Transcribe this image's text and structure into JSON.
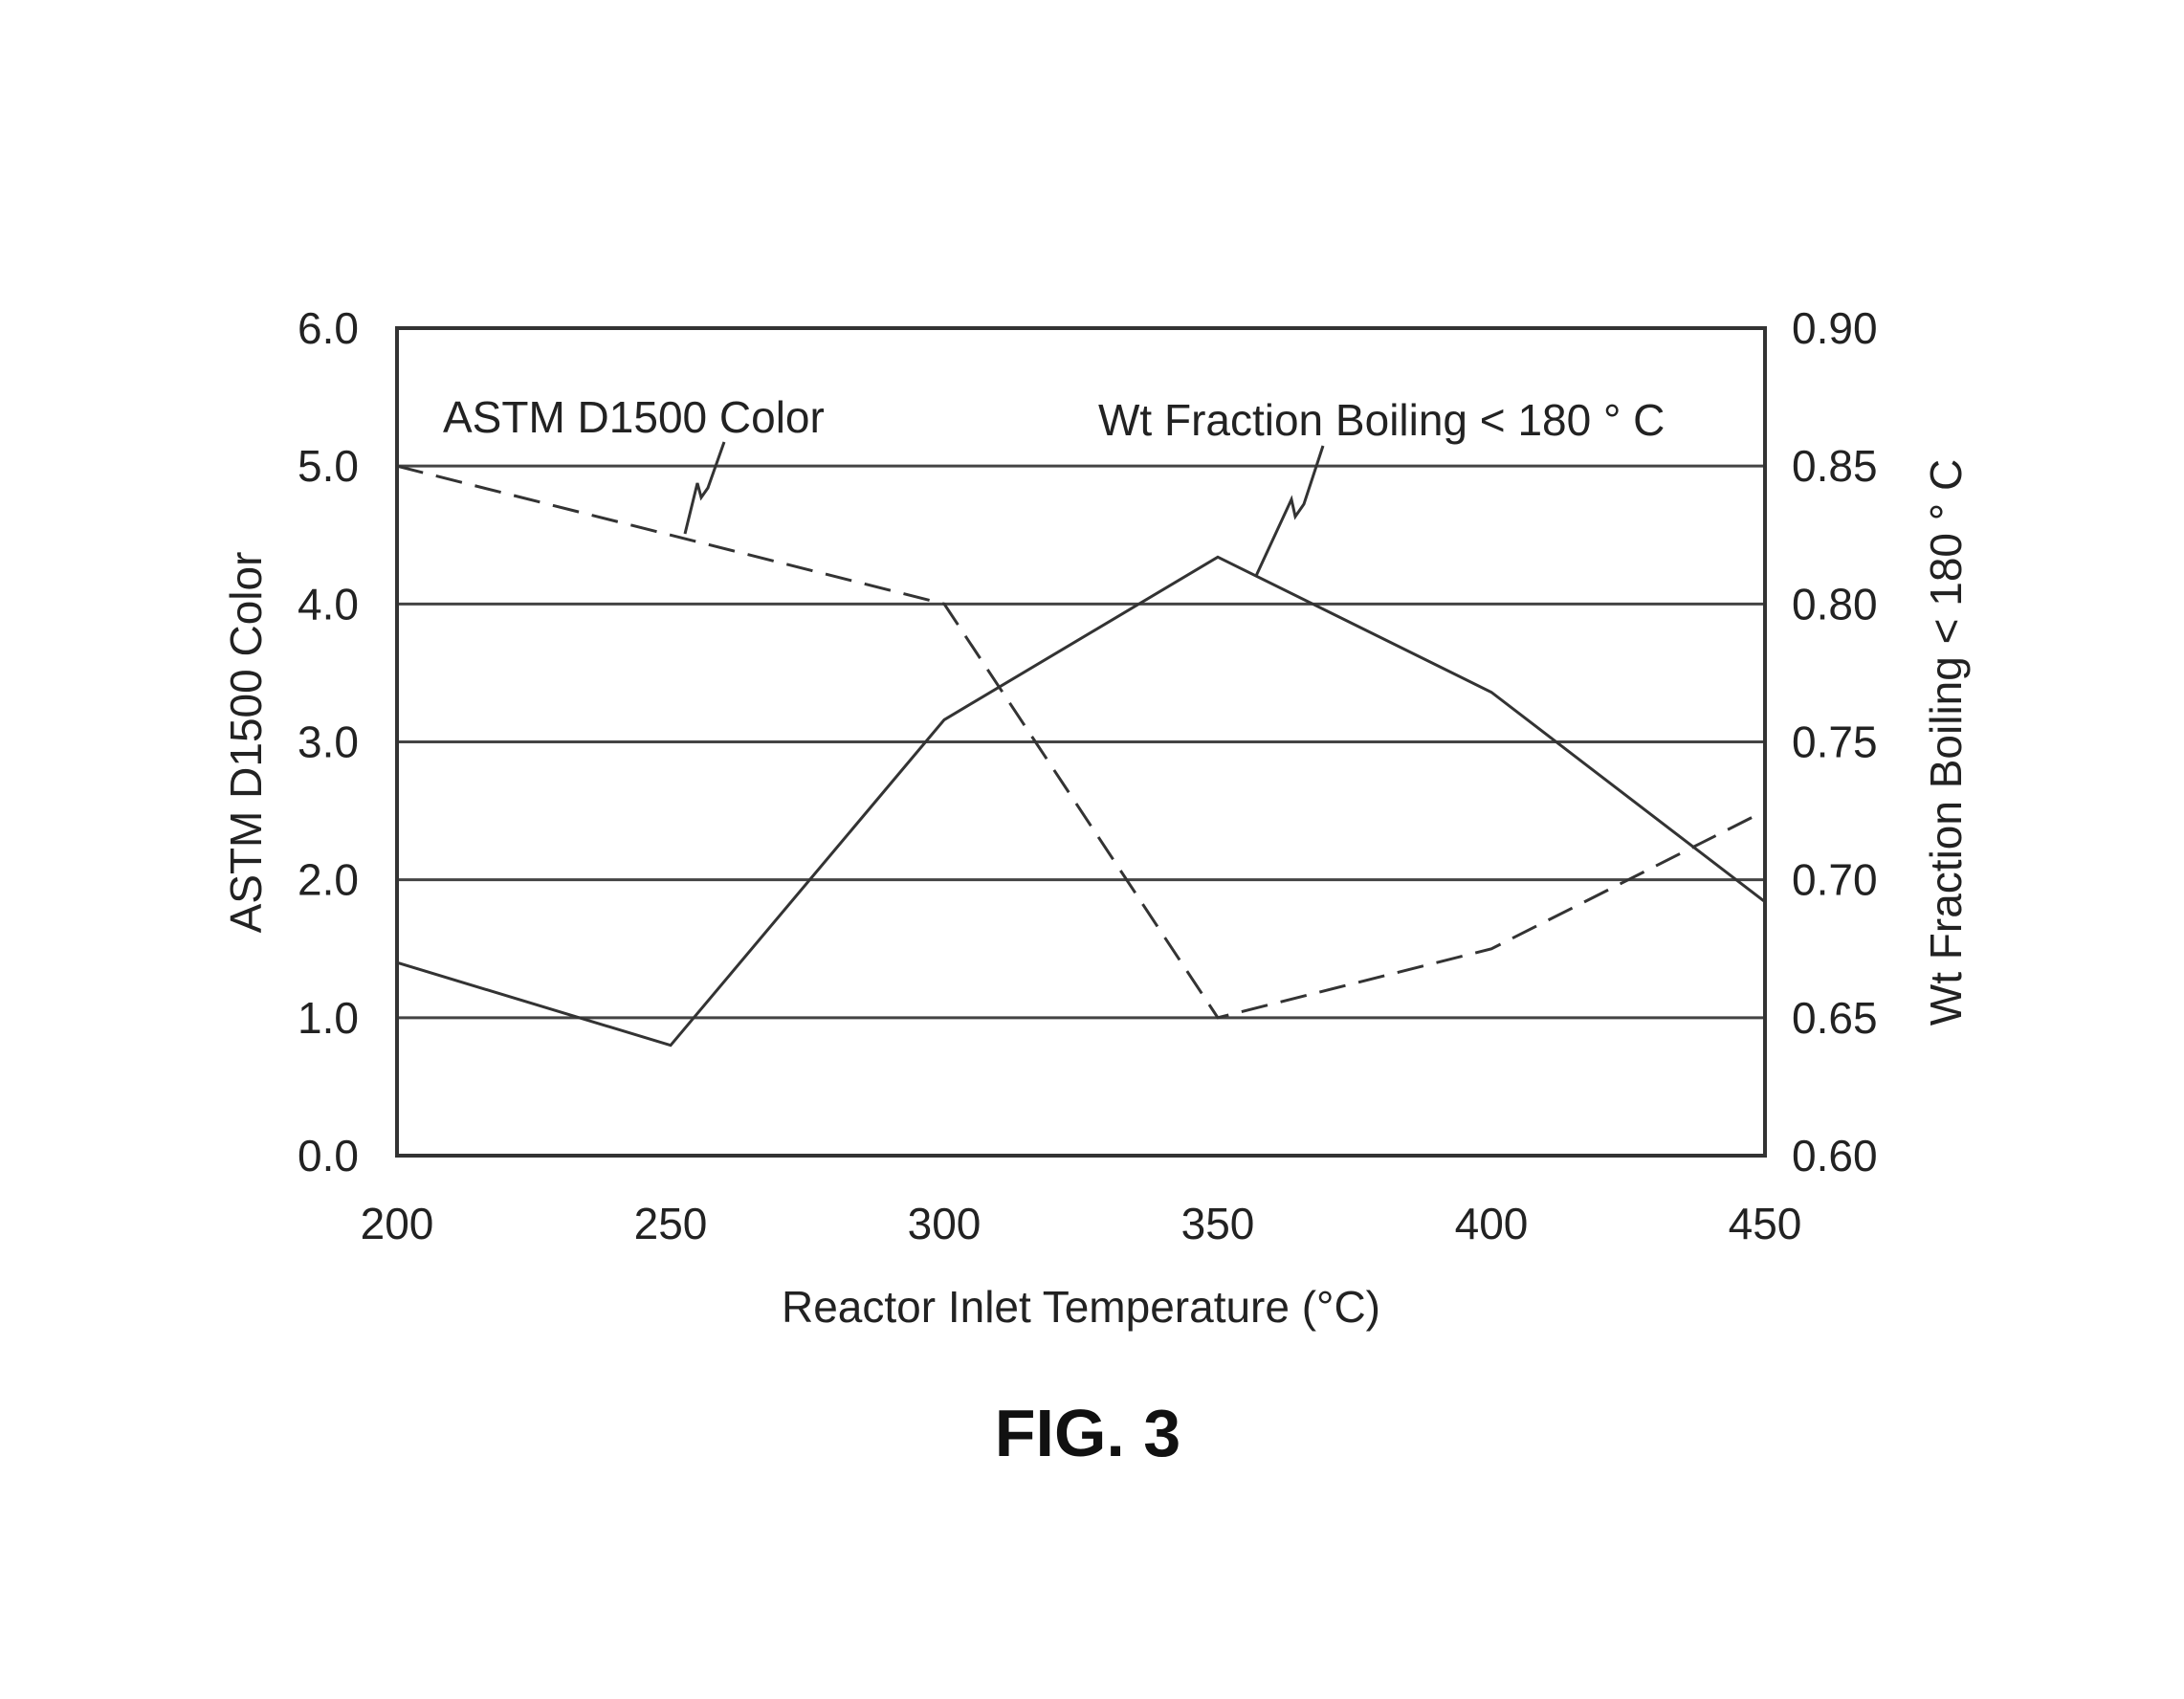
{
  "chart_data": {
    "type": "line",
    "x": [
      200,
      250,
      300,
      350,
      400,
      450
    ],
    "xlabel": "Reactor Inlet Temperature (°C)",
    "xlim": [
      200,
      450
    ],
    "x_ticks": [
      "200",
      "250",
      "300",
      "350",
      "400",
      "450"
    ],
    "ylabel": "ASTM D1500 Color",
    "ylim": [
      0,
      6
    ],
    "y_ticks": [
      "0.0",
      "1.0",
      "2.0",
      "3.0",
      "4.0",
      "5.0",
      "6.0"
    ],
    "y2label": "Wt Fraction Boiling < 180 ° C",
    "y2lim": [
      0.6,
      0.9
    ],
    "y2_ticks": [
      "0.60",
      "0.65",
      "0.70",
      "0.75",
      "0.80",
      "0.85",
      "0.90"
    ],
    "grid": "horizontal",
    "series": [
      {
        "name": "ASTM D1500 Color",
        "axis": "left",
        "style": "dashed",
        "values": [
          5.0,
          4.5,
          4.0,
          1.0,
          1.5,
          2.5
        ]
      },
      {
        "name": "Wt Fraction Boiling < 180 ° C",
        "axis": "right",
        "style": "solid",
        "values": [
          0.67,
          0.64,
          0.758,
          0.817,
          0.768,
          0.692
        ]
      }
    ],
    "colors": {
      "line": "#333333",
      "grid": "#444444"
    }
  },
  "caption": "FIG. 3"
}
